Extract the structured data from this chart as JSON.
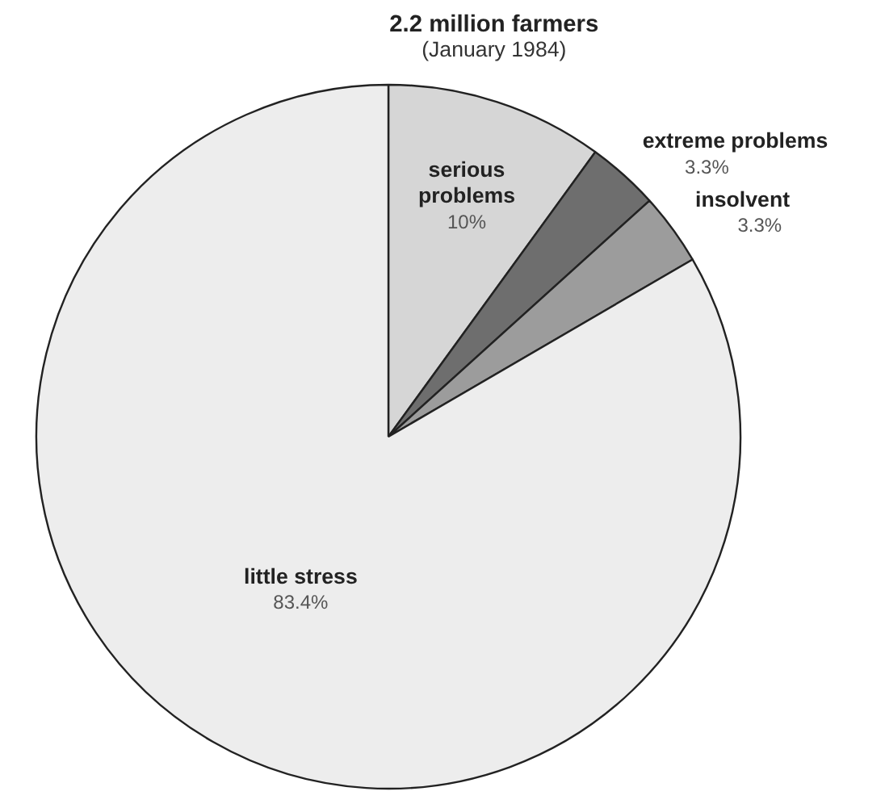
{
  "chart_data": {
    "type": "pie",
    "title": "2.2 million farmers",
    "subtitle": "(January 1984)",
    "categories": [
      "serious problems",
      "extreme problems",
      "insolvent",
      "little stress"
    ],
    "values": [
      10,
      3.3,
      3.3,
      83.4
    ],
    "value_labels": [
      "10%",
      "3.3%",
      "3.3%",
      "83.4%"
    ],
    "colors": [
      "#d6d6d6",
      "#6e6e6e",
      "#9c9c9c",
      "#ededed"
    ]
  }
}
